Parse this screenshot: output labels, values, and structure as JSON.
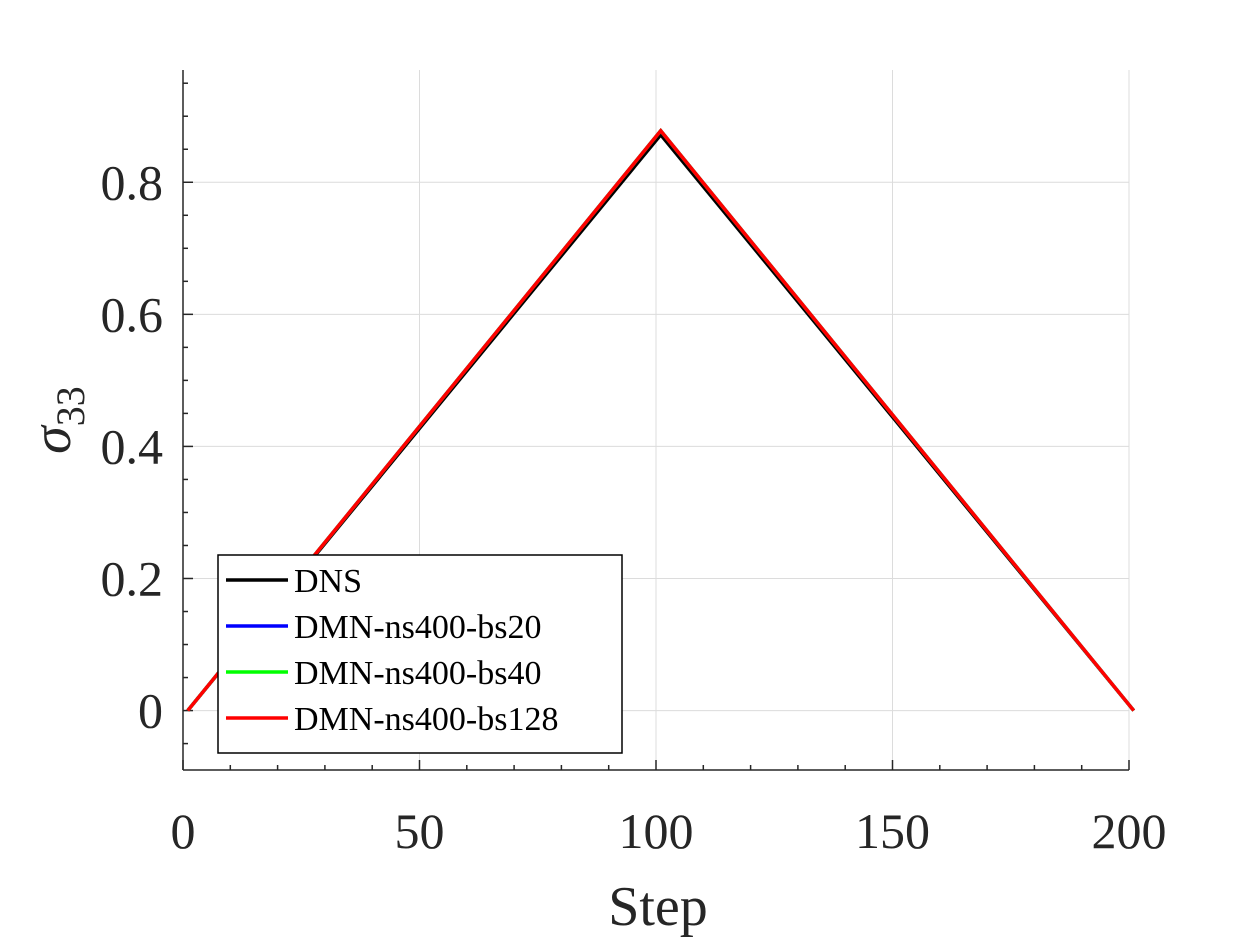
{
  "chart_data": {
    "type": "line",
    "title": "",
    "xlabel": "Step",
    "ylabel_base": "σ",
    "ylabel_sub": "33",
    "xlim": [
      0,
      200
    ],
    "ylim": [
      -0.09,
      0.97
    ],
    "x_ticks": [
      0,
      50,
      100,
      150,
      200
    ],
    "x_tick_labels": [
      "0",
      "50",
      "100",
      "150",
      "200"
    ],
    "y_ticks": [
      0,
      0.2,
      0.4,
      0.6,
      0.8
    ],
    "y_tick_labels": [
      "0",
      "0.2",
      "0.4",
      "0.6",
      "0.8"
    ],
    "grid": true,
    "legend_position": "bottom-left",
    "series": [
      {
        "name": "DNS",
        "color": "#000000",
        "x": [
          1,
          101,
          201
        ],
        "y": [
          0,
          0.872,
          0
        ]
      },
      {
        "name": "DMN-ns400-bs20",
        "color": "#0000ff",
        "x": [
          1,
          101,
          201
        ],
        "y": [
          0,
          0.878,
          0
        ]
      },
      {
        "name": "DMN-ns400-bs40",
        "color": "#00ff00",
        "x": [
          1,
          101,
          201
        ],
        "y": [
          0,
          0.878,
          0
        ]
      },
      {
        "name": "DMN-ns400-bs128",
        "color": "#ff0000",
        "x": [
          1,
          101,
          201
        ],
        "y": [
          0,
          0.878,
          0
        ]
      }
    ]
  }
}
